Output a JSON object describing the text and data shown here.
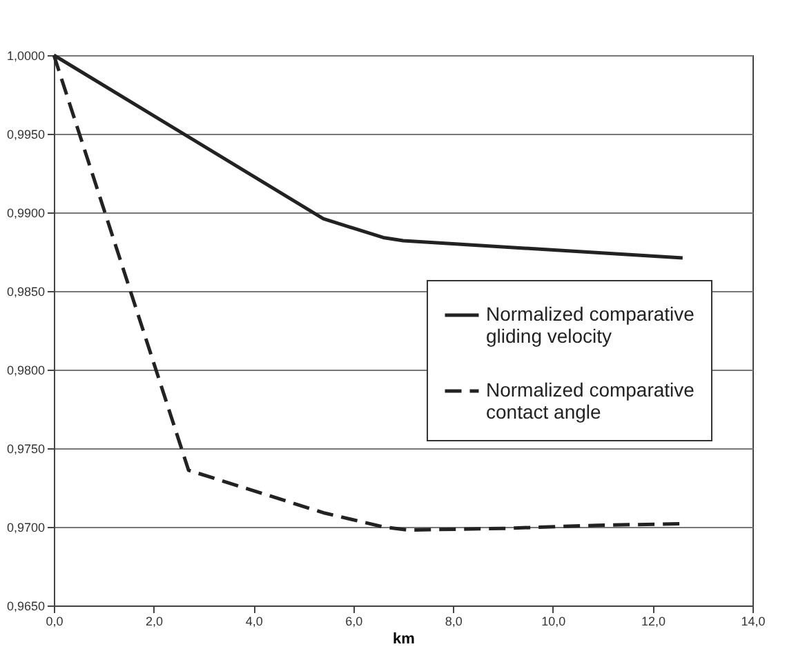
{
  "chart_data": {
    "type": "line",
    "xlabel": "km",
    "xlim": [
      0,
      14
    ],
    "xticks": [
      {
        "value": 0,
        "label": "0,0"
      },
      {
        "value": 2,
        "label": "2,0"
      },
      {
        "value": 4,
        "label": "4,0"
      },
      {
        "value": 6,
        "label": "6,0"
      },
      {
        "value": 8,
        "label": "8,0"
      },
      {
        "value": 10,
        "label": "10,0"
      },
      {
        "value": 12,
        "label": "12,0"
      },
      {
        "value": 14,
        "label": "14,0"
      }
    ],
    "ylim": [
      0.965,
      1.0
    ],
    "yticks": [
      {
        "value": 0.965,
        "label": "0,9650"
      },
      {
        "value": 0.97,
        "label": "0,9700"
      },
      {
        "value": 0.975,
        "label": "0,9750"
      },
      {
        "value": 0.98,
        "label": "0,9800"
      },
      {
        "value": 0.985,
        "label": "0,9850"
      },
      {
        "value": 0.99,
        "label": "0,9900"
      },
      {
        "value": 0.995,
        "label": "0,9950"
      },
      {
        "value": 1.0,
        "label": "1,0000"
      }
    ],
    "grid": "y",
    "legend": "right",
    "marker": "none",
    "series": [
      {
        "name": "Normalized comparative gliding velocity",
        "color": "#222222",
        "line_style": "solid",
        "x": [
          0,
          5.4,
          6.6,
          7.0,
          12.6
        ],
        "values": [
          1.0,
          0.9896,
          0.9884,
          0.9882,
          0.9871
        ]
      },
      {
        "name": "Normalized comparative contact angle",
        "color": "#222222",
        "line_style": "dashed",
        "x": [
          0,
          2.7,
          5.4,
          6.6,
          7.1,
          9.0,
          10.9,
          12.6
        ],
        "values": [
          1.0,
          0.9736,
          0.9709,
          0.97,
          0.9698,
          0.9699,
          0.9701,
          0.9702
        ]
      }
    ]
  }
}
